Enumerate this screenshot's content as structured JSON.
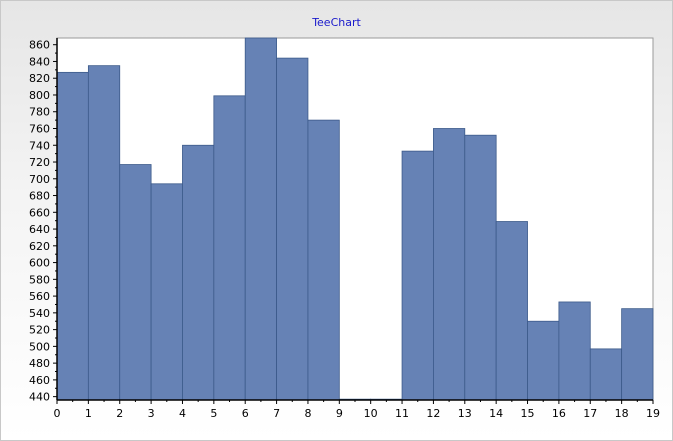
{
  "chart_data": {
    "type": "bar",
    "title": "TeeChart",
    "categories": [
      "0",
      "1",
      "2",
      "3",
      "4",
      "5",
      "6",
      "7",
      "8",
      "9",
      "10",
      "11",
      "12",
      "13",
      "14",
      "15",
      "16",
      "17",
      "18"
    ],
    "values": [
      827,
      835,
      717,
      694,
      740,
      799,
      869,
      844,
      770,
      437,
      437,
      733,
      760,
      752,
      649,
      530,
      553,
      497,
      545
    ],
    "x_ticks": [
      "0",
      "1",
      "2",
      "3",
      "4",
      "5",
      "6",
      "7",
      "8",
      "9",
      "10",
      "11",
      "12",
      "13",
      "14",
      "15",
      "16",
      "17",
      "18",
      "19"
    ],
    "y_ticks": [
      "440",
      "460",
      "480",
      "500",
      "520",
      "540",
      "560",
      "580",
      "600",
      "620",
      "640",
      "660",
      "680",
      "700",
      "720",
      "740",
      "760",
      "780",
      "800",
      "820",
      "840",
      "860"
    ],
    "xlabel": "",
    "ylabel": "",
    "xlim": [
      0,
      19
    ],
    "ylim": [
      436,
      868
    ],
    "grid": false,
    "bar_color": "#6682b5",
    "bar_edge_color": "#3c5a8a",
    "title_color": "#1a1acc"
  }
}
